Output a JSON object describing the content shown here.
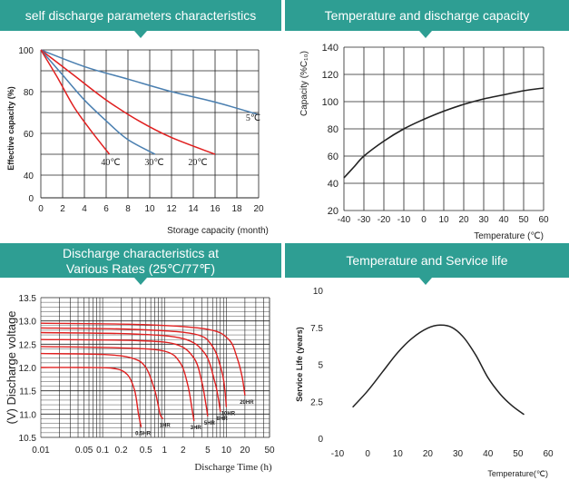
{
  "colors": {
    "banner": "#2e9e93",
    "red": "#e02020",
    "blue": "#4a7fb0",
    "grid": "#222222"
  },
  "panels": {
    "p1": {
      "title": "self discharge parameters characteristics"
    },
    "p2": {
      "title": "Temperature and discharge capacity"
    },
    "p3": {
      "title_line1": "Discharge characteristics at",
      "title_line2": "Various Rates (25℃/77℉)"
    },
    "p4": {
      "title": "Temperature and Service life"
    }
  },
  "chart_data": [
    {
      "type": "line",
      "title": "self discharge parameters characteristics",
      "xlabel": "Storage capacity (month)",
      "ylabel": "Effective capacity (%)",
      "xlim": [
        0,
        20
      ],
      "ylim": [
        0,
        100
      ],
      "x_ticks": [
        "0",
        "2",
        "4",
        "6",
        "8",
        "10",
        "12",
        "14",
        "16",
        "18",
        "20"
      ],
      "y_ticks": [
        "0",
        "40",
        "60",
        "80",
        "100"
      ],
      "y_tick_values": [
        0,
        40,
        60,
        80,
        100
      ],
      "grid": true,
      "series": [
        {
          "name": "5℃",
          "color": "#4a7fb0",
          "points": [
            [
              0,
              100
            ],
            [
              4,
              92
            ],
            [
              8,
              86
            ],
            [
              12,
              80
            ],
            [
              16,
              75
            ],
            [
              20,
              69
            ]
          ]
        },
        {
          "name": "20℃",
          "color": "#e02020",
          "points": [
            [
              0,
              100
            ],
            [
              3,
              88
            ],
            [
              6,
              76
            ],
            [
              9,
              66
            ],
            [
              12,
              58
            ],
            [
              16,
              50
            ]
          ]
        },
        {
          "name": "30℃",
          "color": "#4a7fb0",
          "points": [
            [
              0,
              100
            ],
            [
              2,
              88
            ],
            [
              4,
              76
            ],
            [
              6,
              66
            ],
            [
              8,
              57
            ],
            [
              10.5,
              50
            ]
          ]
        },
        {
          "name": "40℃",
          "color": "#e02020",
          "points": [
            [
              0,
              100
            ],
            [
              1.5,
              87
            ],
            [
              3,
              73
            ],
            [
              4.5,
              62
            ],
            [
              6.3,
              50
            ]
          ]
        }
      ]
    },
    {
      "type": "line",
      "title": "Temperature and discharge capacity",
      "xlabel": "Temperature (℃)",
      "ylabel": "Capacity (%C₁₀)",
      "xlim": [
        -40,
        60
      ],
      "ylim": [
        20,
        140
      ],
      "x_ticks": [
        "-40",
        "-30",
        "-20",
        "-10",
        "0",
        "10",
        "20",
        "30",
        "40",
        "50",
        "60"
      ],
      "y_ticks": [
        "20",
        "40",
        "60",
        "80",
        "100",
        "120",
        "140"
      ],
      "grid": true,
      "series": [
        {
          "color": "#222222",
          "points": [
            [
              -40,
              44
            ],
            [
              -35,
              52
            ],
            [
              -30,
              60
            ],
            [
              -20,
              71
            ],
            [
              -10,
              80
            ],
            [
              0,
              87
            ],
            [
              10,
              93
            ],
            [
              20,
              98
            ],
            [
              30,
              102
            ],
            [
              40,
              105
            ],
            [
              50,
              108
            ],
            [
              60,
              110
            ]
          ]
        }
      ]
    },
    {
      "type": "line",
      "title": "Discharge characteristics at Various Rates (25℃/77℉)",
      "xlabel": "Discharge Time (h)",
      "ylabel": "(V) Discharge voltage",
      "xscale": "log",
      "xlim": [
        0.01,
        50
      ],
      "ylim": [
        10.5,
        13.5
      ],
      "x_ticks": [
        "0.01",
        "0.05",
        "0.1",
        "0.2",
        "0.5",
        "1",
        "2",
        "5",
        "10",
        "20",
        "50"
      ],
      "x_tick_values": [
        0.01,
        0.05,
        0.1,
        0.2,
        0.5,
        1,
        2,
        5,
        10,
        20,
        50
      ],
      "y_ticks": [
        "10.5",
        "11.0",
        "11.5",
        "12.0",
        "12.5",
        "13.0",
        "13.5"
      ],
      "grid": true,
      "series": [
        {
          "name": "0.5HR",
          "color": "#e02020",
          "points": [
            [
              0.01,
              12.0
            ],
            [
              0.05,
              12.0
            ],
            [
              0.15,
              11.98
            ],
            [
              0.25,
              11.85
            ],
            [
              0.33,
              11.5
            ],
            [
              0.38,
              11.0
            ],
            [
              0.42,
              10.72
            ]
          ]
        },
        {
          "name": "1HR",
          "color": "#e02020",
          "points": [
            [
              0.01,
              12.3
            ],
            [
              0.1,
              12.28
            ],
            [
              0.3,
              12.2
            ],
            [
              0.5,
              12.0
            ],
            [
              0.7,
              11.5
            ],
            [
              0.85,
              11.0
            ],
            [
              0.95,
              10.9
            ]
          ]
        },
        {
          "name": "3HR",
          "color": "#e02020",
          "points": [
            [
              0.01,
              12.45
            ],
            [
              0.2,
              12.42
            ],
            [
              1,
              12.35
            ],
            [
              1.8,
              12.1
            ],
            [
              2.4,
              11.6
            ],
            [
              2.8,
              11.1
            ],
            [
              3.0,
              10.85
            ]
          ]
        },
        {
          "name": "5HR",
          "color": "#e02020",
          "points": [
            [
              0.01,
              12.6
            ],
            [
              0.3,
              12.58
            ],
            [
              1.5,
              12.5
            ],
            [
              3,
              12.2
            ],
            [
              4,
              11.7
            ],
            [
              4.7,
              11.2
            ],
            [
              5.0,
              10.95
            ]
          ]
        },
        {
          "name": "8HR",
          "color": "#e02020",
          "points": [
            [
              0.01,
              12.75
            ],
            [
              0.3,
              12.72
            ],
            [
              2,
              12.62
            ],
            [
              4.5,
              12.3
            ],
            [
              6.5,
              11.7
            ],
            [
              7.5,
              11.3
            ],
            [
              8.0,
              11.05
            ]
          ]
        },
        {
          "name": "10HR",
          "color": "#e02020",
          "points": [
            [
              0.01,
              12.85
            ],
            [
              0.3,
              12.82
            ],
            [
              3,
              12.72
            ],
            [
              6,
              12.45
            ],
            [
              8.5,
              11.9
            ],
            [
              9.5,
              11.5
            ],
            [
              10,
              11.15
            ]
          ]
        },
        {
          "name": "20HR",
          "color": "#e02020",
          "points": [
            [
              0.01,
              12.95
            ],
            [
              0.5,
              12.92
            ],
            [
              5,
              12.82
            ],
            [
              11,
              12.6
            ],
            [
              15,
              12.2
            ],
            [
              18,
              11.8
            ],
            [
              20,
              11.4
            ]
          ]
        }
      ]
    },
    {
      "type": "line",
      "title": "Temperature and Service life",
      "xlabel": "Temperature(℃)",
      "ylabel": "Service Life (years)",
      "xlim": [
        -10,
        60
      ],
      "ylim": [
        0,
        10
      ],
      "x_ticks": [
        "-10",
        "0",
        "10",
        "20",
        "30",
        "40",
        "50",
        "60"
      ],
      "y_ticks": [
        "0",
        "2.5",
        "5",
        "7.5",
        "10"
      ],
      "grid": false,
      "series": [
        {
          "color": "#222222",
          "points": [
            [
              -5,
              2.1
            ],
            [
              0,
              3.2
            ],
            [
              5,
              4.5
            ],
            [
              10,
              5.8
            ],
            [
              15,
              6.8
            ],
            [
              20,
              7.45
            ],
            [
              24,
              7.65
            ],
            [
              28,
              7.5
            ],
            [
              32,
              6.8
            ],
            [
              36,
              5.6
            ],
            [
              40,
              4.1
            ],
            [
              44,
              3.0
            ],
            [
              48,
              2.2
            ],
            [
              52,
              1.6
            ]
          ]
        }
      ]
    }
  ]
}
